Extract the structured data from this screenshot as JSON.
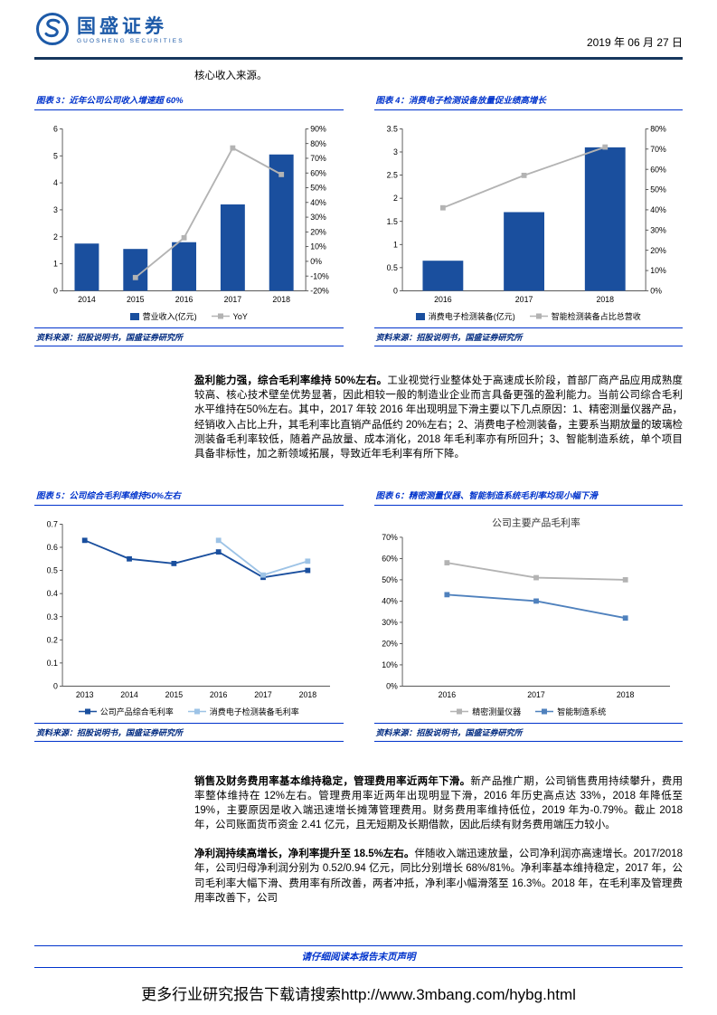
{
  "header": {
    "brand": "国盛证券",
    "brand_sub": "GUOSHENG SECURITIES",
    "date": "2019 年 06 月 27 日"
  },
  "intro": "核心收入来源。",
  "figures": [
    {
      "caption": "图表 3：近年公司公司收入增速超 60%",
      "source": "资料来源：招股说明书，国盛证券研究所"
    },
    {
      "caption": "图表 4：消费电子检测设备放量促业绩高增长",
      "source": "资料来源：招股说明书，国盛证券研究所"
    },
    {
      "caption": "图表 5：公司综合毛利率维持50%左右",
      "source": "资料来源：招股说明书，国盛证券研究所"
    },
    {
      "caption": "图表 6：精密测量仪器、智能制造系统毛利率均现小幅下滑",
      "source": "资料来源：招股说明书，国盛证券研究所"
    }
  ],
  "paragraphs": [
    {
      "lead": "盈利能力强，综合毛利率维持 50%左右。",
      "body": "工业视觉行业整体处于高速成长阶段，首部厂商产品应用成熟度较高、核心技术壁垒优势显著，因此相较一般的制造业企业而言具备更强的盈利能力。当前公司综合毛利水平维持在50%左右。其中，2017 年较 2016 年出现明显下滑主要以下几点原因：1、精密测量仪器产品，经销收入占比上升，其毛利率比直销产品低约 20%左右；2、消费电子检测装备，主要系当期放量的玻璃检测装备毛利率较低，随着产品放量、成本消化，2018 年毛利率亦有所回升；3、智能制造系统，单个项目具备非标性，加之新领域拓展，导致近年毛利率有所下降。"
    },
    {
      "lead": "销售及财务费用率基本维持稳定，管理费用率近两年下滑。",
      "body": "新产品推广期，公司销售费用持续攀升，费用率整体维持在 12%左右。管理费用率近两年出现明显下滑，2016 年历史高点达 33%，2018 年降低至 19%，主要原因是收入端迅速增长摊薄管理费用。财务费用率维持低位，2019 年为-0.79%。截止 2018 年，公司账面货币资金 2.41 亿元，且无短期及长期借款，因此后续有财务费用端压力较小。"
    },
    {
      "lead": "净利润持续高增长，净利率提升至 18.5%左右。",
      "body": "伴随收入端迅速放量，公司净利润亦高速增长。2017/2018 年，公司归母净利润分别为 0.52/0.94 亿元，同比分别增长 68%/81%。净利率基本维持稳定，2017 年，公司毛利率大幅下滑、费用率有所改善，两者冲抵，净利率小幅滑落至 16.3%。2018 年，在毛利率及管理费用率改善下，公司"
    }
  ],
  "footer": {
    "disclaimer": "请仔细阅读本报告末页声明",
    "promo": "更多行业研究报告下载请搜索http://www.3mbang.com/hybg.html"
  },
  "colors": {
    "bar_blue": "#1a4f9e",
    "gray_line": "#b3b3b3",
    "light_blue": "#9dc3e6",
    "steel_blue": "#4f81bd",
    "caption_blue": "#0033cc",
    "header_navy": "#17375e"
  },
  "chart_data": [
    {
      "type": "bar",
      "categories": [
        "2014",
        "2015",
        "2016",
        "2017",
        "2018"
      ],
      "left_axis": {
        "min": 0,
        "max": 6,
        "step": 1,
        "format": "num"
      },
      "right_axis": {
        "min": -20,
        "max": 90,
        "step": 10,
        "format": "pct"
      },
      "series": [
        {
          "name": "营业收入(亿元)",
          "kind": "bar",
          "axis": "left",
          "color": "#1a4f9e",
          "values": [
            1.75,
            1.55,
            1.8,
            3.2,
            5.05
          ]
        },
        {
          "name": "YoY",
          "kind": "line",
          "axis": "right",
          "color": "#b3b3b3",
          "values": [
            null,
            -11,
            16,
            77,
            59
          ]
        }
      ]
    },
    {
      "type": "bar",
      "categories": [
        "2016",
        "2017",
        "2018"
      ],
      "left_axis": {
        "min": 0,
        "max": 3.5,
        "step": 0.5,
        "format": "num"
      },
      "right_axis": {
        "min": 0,
        "max": 80,
        "step": 10,
        "format": "pct"
      },
      "series": [
        {
          "name": "消费电子检测装备(亿元)",
          "kind": "bar",
          "axis": "left",
          "color": "#1a4f9e",
          "values": [
            0.65,
            1.7,
            3.1
          ]
        },
        {
          "name": "智能检测装备占比总营收",
          "kind": "line",
          "axis": "right",
          "color": "#b3b3b3",
          "values": [
            41,
            57,
            71
          ]
        }
      ]
    },
    {
      "type": "line",
      "categories": [
        "2013",
        "2014",
        "2015",
        "2016",
        "2017",
        "2018"
      ],
      "left_axis": {
        "min": 0,
        "max": 0.7,
        "step": 0.1,
        "format": "num"
      },
      "series": [
        {
          "name": "公司产品综合毛利率",
          "kind": "line",
          "axis": "left",
          "color": "#1a4f9e",
          "values": [
            0.63,
            0.55,
            0.53,
            0.58,
            0.47,
            0.5
          ]
        },
        {
          "name": "消费电子检测装备毛利率",
          "kind": "line",
          "axis": "left",
          "color": "#9dc3e6",
          "values": [
            null,
            null,
            null,
            0.63,
            0.48,
            0.54
          ]
        }
      ]
    },
    {
      "type": "line",
      "title": "公司主要产品毛利率",
      "categories": [
        "2016",
        "2017",
        "2018"
      ],
      "left_axis": {
        "min": 0,
        "max": 70,
        "step": 10,
        "format": "pct"
      },
      "series": [
        {
          "name": "精密测量仪器",
          "kind": "line",
          "axis": "left",
          "color": "#b3b3b3",
          "values": [
            58,
            51,
            50
          ]
        },
        {
          "name": "智能制造系统",
          "kind": "line",
          "axis": "left",
          "color": "#4f81bd",
          "values": [
            43,
            40,
            32
          ]
        }
      ]
    }
  ]
}
